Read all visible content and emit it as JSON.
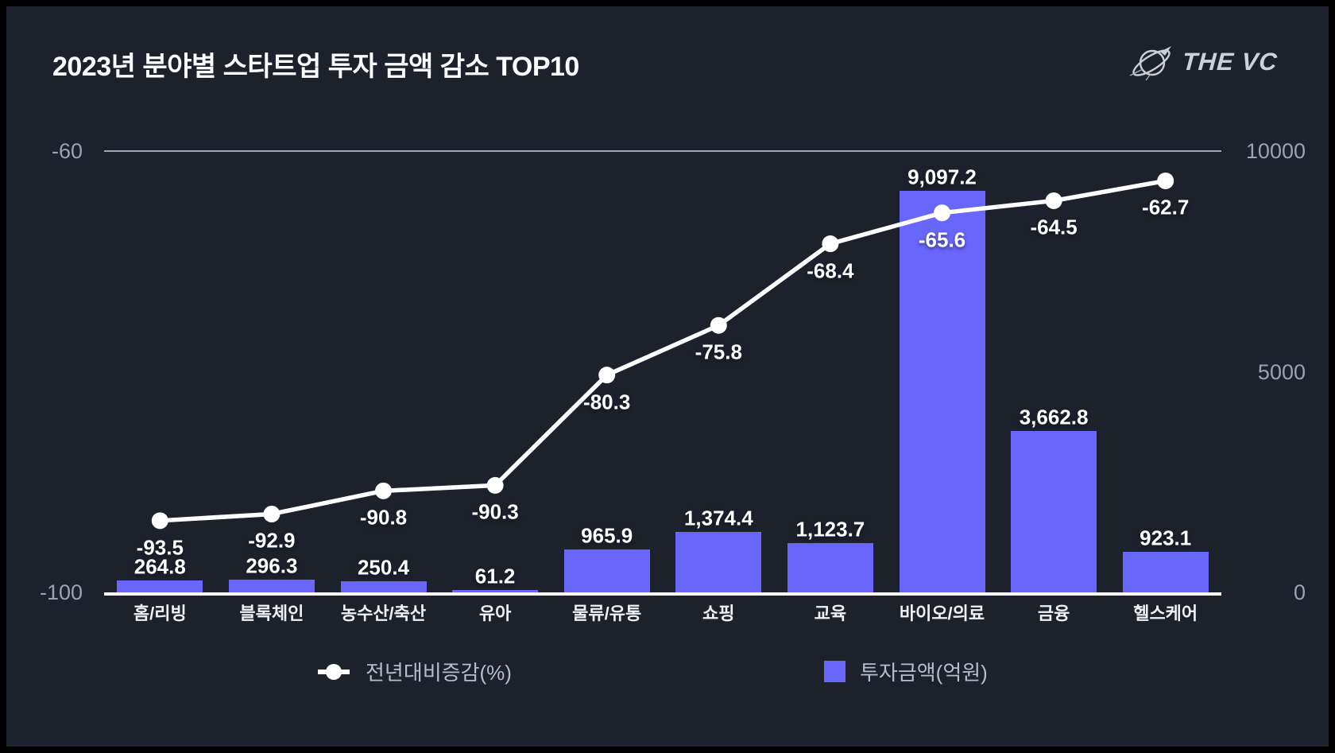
{
  "header": {
    "title": "2023년 분야별 스타트업 투자 금액 감소 TOP10",
    "logo_text": "THE VC"
  },
  "legend": {
    "line_label": "전년대비증감(%)",
    "bar_label": "투자금액(억원)"
  },
  "colors": {
    "background": "#1c212b",
    "frame": "#000000",
    "bar": "#6966fb",
    "line": "#ffffff",
    "axis_text": "#99a3b2",
    "category_text": "#eef2f7",
    "legend_text": "#b6bec9",
    "gridline": "#b6beca"
  },
  "chart_data": {
    "type": "bar",
    "subtype": "combo-bar-line",
    "title": "2023년 분야별 스타트업 투자 금액 감소 TOP10",
    "categories": [
      "홈/리빙",
      "블록체인",
      "농수산/축산",
      "유아",
      "물류/유통",
      "쇼핑",
      "교육",
      "바이오/의료",
      "금융",
      "헬스케어"
    ],
    "series": [
      {
        "name": "전년대비증감(%)",
        "type": "line",
        "axis": "left",
        "color": "#ffffff",
        "values": [
          -93.5,
          -92.9,
          -90.8,
          -90.3,
          -80.3,
          -75.8,
          -68.4,
          -65.6,
          -64.5,
          -62.7
        ],
        "labels": [
          "-93.5",
          "-92.9",
          "-90.8",
          "-90.3",
          "-80.3",
          "-75.8",
          "-68.4",
          "-65.6",
          "-64.5",
          "-62.7"
        ]
      },
      {
        "name": "투자금액(억원)",
        "type": "bar",
        "axis": "right",
        "color": "#6966fb",
        "values": [
          264.8,
          296.3,
          250.4,
          61.2,
          965.9,
          1374.4,
          1123.7,
          9097.2,
          3662.8,
          923.1
        ],
        "labels": [
          "264.8",
          "296.3",
          "250.4",
          "61.2",
          "965.9",
          "1,374.4",
          "1,123.7",
          "9,097.2",
          "3,662.8",
          "923.1"
        ]
      }
    ],
    "left_axis": {
      "ticks": [
        {
          "label": "-60",
          "value": -60
        },
        {
          "label": "-100",
          "value": -100
        }
      ],
      "range": [
        -100,
        -60
      ]
    },
    "right_axis": {
      "ticks": [
        {
          "label": "10000",
          "value": 10000
        },
        {
          "label": "5000",
          "value": 5000
        },
        {
          "label": "0",
          "value": 0
        }
      ],
      "range": [
        0,
        10000
      ]
    },
    "grid": "single horizontal gridline at -60 / 10000",
    "legend_position": "bottom"
  }
}
